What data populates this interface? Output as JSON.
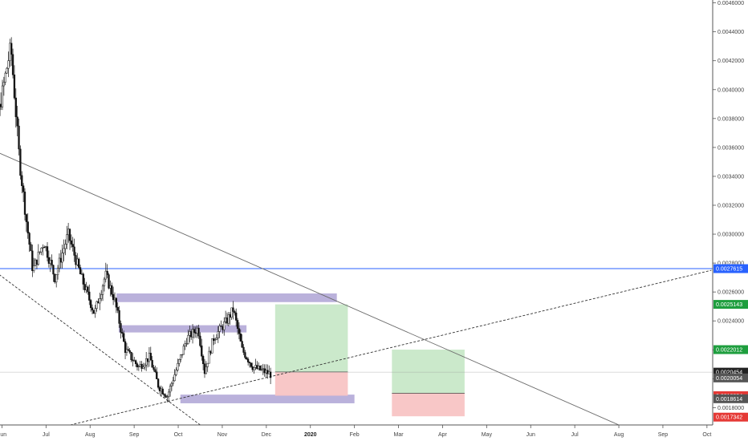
{
  "chart_data": {
    "type": "candlestick",
    "y_axis": {
      "range": [
        0.00168,
        0.00462
      ],
      "ticks": [
        "0.0046000",
        "0.0044000",
        "0.0042000",
        "0.0040000",
        "0.0038000",
        "0.0036000",
        "0.0034000",
        "0.0032000",
        "0.0030000",
        "0.0028000",
        "0.0026000",
        "0.0024000",
        "0.0022000",
        "0.0020000",
        "0.0018000"
      ],
      "tick_values": [
        0.0046,
        0.0044,
        0.0042,
        0.004,
        0.0038,
        0.0036,
        0.0034,
        0.0032,
        0.003,
        0.0028,
        0.0026,
        0.0024,
        0.0022,
        0.002,
        0.0018
      ]
    },
    "x_axis": {
      "labels": [
        {
          "text": "Jun",
          "pos": 0.5,
          "bold": false
        },
        {
          "text": "Jul",
          "pos": 1.5,
          "bold": false
        },
        {
          "text": "Aug",
          "pos": 2.5,
          "bold": false
        },
        {
          "text": "Sep",
          "pos": 3.5,
          "bold": false
        },
        {
          "text": "Oct",
          "pos": 4.5,
          "bold": false
        },
        {
          "text": "Nov",
          "pos": 5.5,
          "bold": false
        },
        {
          "text": "Dec",
          "pos": 6.5,
          "bold": false
        },
        {
          "text": "2020",
          "pos": 7.5,
          "bold": true
        },
        {
          "text": "Feb",
          "pos": 8.5,
          "bold": false
        },
        {
          "text": "Mar",
          "pos": 9.5,
          "bold": false
        },
        {
          "text": "Apr",
          "pos": 10.5,
          "bold": false
        },
        {
          "text": "May",
          "pos": 11.5,
          "bold": false
        },
        {
          "text": "Jun",
          "pos": 12.5,
          "bold": false
        },
        {
          "text": "Jul",
          "pos": 13.5,
          "bold": false
        },
        {
          "text": "Aug",
          "pos": 14.5,
          "bold": false
        },
        {
          "text": "Sep",
          "pos": 15.5,
          "bold": false
        },
        {
          "text": "Oct",
          "pos": 16.5,
          "bold": false
        }
      ]
    },
    "price_anchors": [
      [
        0.0,
        0.00395
      ],
      [
        0.4,
        0.0038
      ],
      [
        0.7,
        0.0043
      ],
      [
        0.9,
        0.0035
      ],
      [
        1.05,
        0.0031
      ],
      [
        1.2,
        0.00275
      ],
      [
        1.45,
        0.00295
      ],
      [
        1.7,
        0.0027
      ],
      [
        2.0,
        0.003
      ],
      [
        2.3,
        0.0027
      ],
      [
        2.6,
        0.00245
      ],
      [
        2.85,
        0.00272
      ],
      [
        3.05,
        0.00255
      ],
      [
        3.3,
        0.0022
      ],
      [
        3.6,
        0.00208
      ],
      [
        3.85,
        0.00215
      ],
      [
        4.05,
        0.00195
      ],
      [
        4.25,
        0.00188
      ],
      [
        4.5,
        0.0021
      ],
      [
        4.7,
        0.00228
      ],
      [
        4.95,
        0.00235
      ],
      [
        5.1,
        0.00205
      ],
      [
        5.3,
        0.00228
      ],
      [
        5.6,
        0.0024
      ],
      [
        5.75,
        0.00248
      ],
      [
        5.95,
        0.0022
      ],
      [
        6.2,
        0.00208
      ],
      [
        6.45,
        0.00205
      ],
      [
        6.6,
        0.00203
      ]
    ],
    "horizontal_line": {
      "value": 0.0027615,
      "label": "0.0027615",
      "color": "#2962ff"
    },
    "current_price_line": {
      "value": 0.0020454,
      "color": "#999999"
    },
    "trend_lines": [
      {
        "style": "solid",
        "color": "#6b6b6b",
        "from": [
          0.0,
          0.00362
        ],
        "to": [
          14.5,
          0.00168
        ]
      },
      {
        "style": "dashed",
        "color": "#333333",
        "from": [
          0.0,
          0.00282
        ],
        "to": [
          5.0,
          0.00168
        ]
      },
      {
        "style": "dashed",
        "color": "#333333",
        "from": [
          2.05,
          0.00168
        ],
        "to": [
          16.6,
          0.00275
        ]
      }
    ],
    "zones": [
      {
        "kind": "level",
        "color": "#b6add9",
        "x1": 3.1,
        "x2": 8.1,
        "y1": 0.00253,
        "y2": 0.00259
      },
      {
        "kind": "level",
        "color": "#b6add9",
        "x1": 3.15,
        "x2": 6.05,
        "y1": 0.00232,
        "y2": 0.00237
      },
      {
        "kind": "level",
        "color": "#b6add9",
        "x1": 4.55,
        "x2": 8.5,
        "y1": 0.00183,
        "y2": 0.00189
      },
      {
        "kind": "target",
        "color": "#c8e8c8",
        "x1": 6.7,
        "x2": 8.35,
        "y1": 0.002047,
        "y2": 0.0025143
      },
      {
        "kind": "stop",
        "color": "#f8c4c4",
        "x1": 6.7,
        "x2": 8.35,
        "y1": 0.0018824,
        "y2": 0.002047
      },
      {
        "kind": "target",
        "color": "#c8e8c8",
        "x1": 9.35,
        "x2": 11.0,
        "y1": 0.0019,
        "y2": 0.0022012
      },
      {
        "kind": "stop",
        "color": "#f8c4c4",
        "x1": 9.35,
        "x2": 11.0,
        "y1": 0.00174,
        "y2": 0.0019
      }
    ],
    "price_tags": [
      {
        "label": "0.0027615",
        "value": 0.0027615,
        "color": "#2962ff"
      },
      {
        "label": "0.0025143",
        "value": 0.0025143,
        "color": "#1e9e3e"
      },
      {
        "label": "0.0022012",
        "value": 0.0022012,
        "color": "#1e9e3e"
      },
      {
        "label": "0.0020454",
        "value": 0.0020454,
        "color": "#222222"
      },
      {
        "label": "0.0020054",
        "value": 0.0020054,
        "color": "#555555"
      },
      {
        "label": "0.0018824",
        "value": 0.0018824,
        "color": "#e53935"
      },
      {
        "label": "0.0018614",
        "value": 0.0018614,
        "color": "#555555"
      },
      {
        "label": "0.0017342",
        "value": 0.0017342,
        "color": "#e53935"
      }
    ]
  }
}
